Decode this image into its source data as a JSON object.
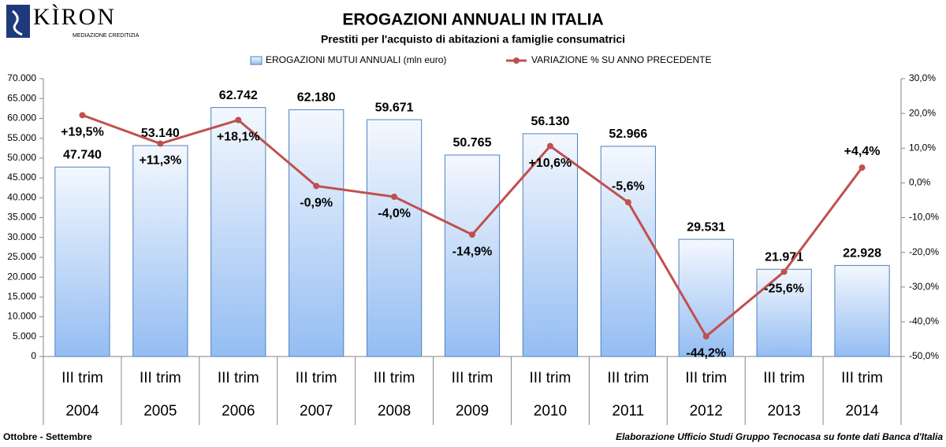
{
  "logo": {
    "name": "KÌRON",
    "tagline": "MEDIAZIONE CREDITIZIA"
  },
  "footer": {
    "left": "Ottobre - Settembre",
    "right": "Elaborazione Ufficio Studi Gruppo Tecnocasa su fonte dati Banca d'Italia"
  },
  "chart_data": {
    "type": "bar-line",
    "title": "EROGAZIONI ANNUALI IN ITALIA",
    "subtitle": "Prestiti per l'acquisto di abitazioni a famiglie consumatrici",
    "categories": [
      "2004",
      "2005",
      "2006",
      "2007",
      "2008",
      "2009",
      "2010",
      "2011",
      "2012",
      "2013",
      "2014"
    ],
    "category_sublabels": [
      "III trim",
      "III trim",
      "III trim",
      "III trim",
      "III trim",
      "III trim",
      "III trim",
      "III trim",
      "III trim",
      "III trim",
      "III trim"
    ],
    "series": [
      {
        "name": "EROGAZIONI MUTUI ANNUALI (mln euro)",
        "type": "bar",
        "color": "#4f81bd",
        "values": [
          47740,
          53140,
          62742,
          62180,
          59671,
          50765,
          56130,
          52966,
          29531,
          21971,
          22928
        ],
        "value_labels": [
          "47.740",
          "53.140",
          "62.742",
          "62.180",
          "59.671",
          "50.765",
          "56.130",
          "52.966",
          "29.531",
          "21.971",
          "22.928"
        ]
      },
      {
        "name": "VARIAZIONE % SU ANNO PRECEDENTE",
        "type": "line",
        "axis": "y2",
        "color": "#c0504d",
        "positive_color": "#33dd33",
        "negative_color": "#e00010",
        "values": [
          19.5,
          11.3,
          18.1,
          -0.9,
          -4.0,
          -14.9,
          10.6,
          -5.6,
          -44.2,
          -25.6,
          4.4
        ],
        "value_labels": [
          "+19,5%",
          "+11,3%",
          "+18,1%",
          "-0,9%",
          "-4,0%",
          "-14,9%",
          "+10,6%",
          "-5,6%",
          "-44,2%",
          "-25,6%",
          "+4,4%"
        ]
      }
    ],
    "ylim": [
      0,
      70000
    ],
    "yticks": [
      0,
      {
        "value": 5000,
        "label": "5.000"
      },
      {
        "value": 10000,
        "label": "10.000"
      },
      {
        "value": 15000,
        "label": "15.000"
      },
      {
        "value": 20000,
        "label": "20.000"
      },
      {
        "value": 25000,
        "label": "25.000"
      },
      {
        "value": 30000,
        "label": "30.000"
      },
      {
        "value": 35000,
        "label": "35.000"
      },
      {
        "value": 40000,
        "label": "40.000"
      },
      {
        "value": 45000,
        "label": "45.000"
      },
      {
        "value": 50000,
        "label": "50.000"
      },
      {
        "value": 55000,
        "label": "55.000"
      },
      {
        "value": 60000,
        "label": "60.000"
      },
      {
        "value": 65000,
        "label": "65.000"
      },
      {
        "value": 70000,
        "label": "70.000"
      }
    ],
    "y2lim": [
      -50,
      30
    ],
    "y2ticks": [
      {
        "value": -50,
        "label": "-50,0%"
      },
      {
        "value": -40,
        "label": "-40,0%"
      },
      {
        "value": -30,
        "label": "-30,0%"
      },
      {
        "value": -20,
        "label": "-20,0%"
      },
      {
        "value": -10,
        "label": "-10,0%"
      },
      {
        "value": 0,
        "label": "0,0%"
      },
      {
        "value": 10,
        "label": "10,0%"
      },
      {
        "value": 20,
        "label": "20,0%"
      },
      {
        "value": 30,
        "label": "30,0%"
      }
    ],
    "grid": false,
    "legend": "top"
  }
}
